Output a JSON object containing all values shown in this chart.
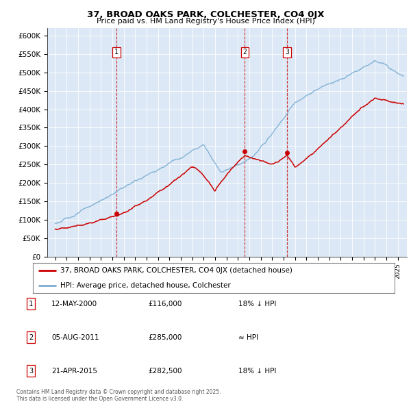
{
  "title": "37, BROAD OAKS PARK, COLCHESTER, CO4 0JX",
  "subtitle": "Price paid vs. HM Land Registry's House Price Index (HPI)",
  "ylabel_ticks": [
    "£0",
    "£50K",
    "£100K",
    "£150K",
    "£200K",
    "£250K",
    "£300K",
    "£350K",
    "£400K",
    "£450K",
    "£500K",
    "£550K",
    "£600K"
  ],
  "ytick_values": [
    0,
    50000,
    100000,
    150000,
    200000,
    250000,
    300000,
    350000,
    400000,
    450000,
    500000,
    550000,
    600000
  ],
  "ylim": [
    0,
    620000
  ],
  "xlim": [
    1994.3,
    2025.8
  ],
  "sale_dates": [
    2000.36,
    2011.6,
    2015.3
  ],
  "sale_prices": [
    116000,
    285000,
    282500
  ],
  "sale_labels": [
    "1",
    "2",
    "3"
  ],
  "vline_color": "#cc0000",
  "legend_label_red": "37, BROAD OAKS PARK, COLCHESTER, CO4 0JX (detached house)",
  "legend_label_blue": "HPI: Average price, detached house, Colchester",
  "table_rows": [
    {
      "num": "1",
      "date": "12-MAY-2000",
      "price": "£116,000",
      "note": "18% ↓ HPI"
    },
    {
      "num": "2",
      "date": "05-AUG-2011",
      "price": "£285,000",
      "note": "≈ HPI"
    },
    {
      "num": "3",
      "date": "21-APR-2015",
      "price": "£282,500",
      "note": "18% ↓ HPI"
    }
  ],
  "footnote": "Contains HM Land Registry data © Crown copyright and database right 2025.\nThis data is licensed under the Open Government Licence v3.0.",
  "red_color": "#cc0000",
  "blue_color": "#7aadd4",
  "bg_color": "#ffffff",
  "chart_bg": "#dce8f5",
  "grid_color": "#ffffff"
}
